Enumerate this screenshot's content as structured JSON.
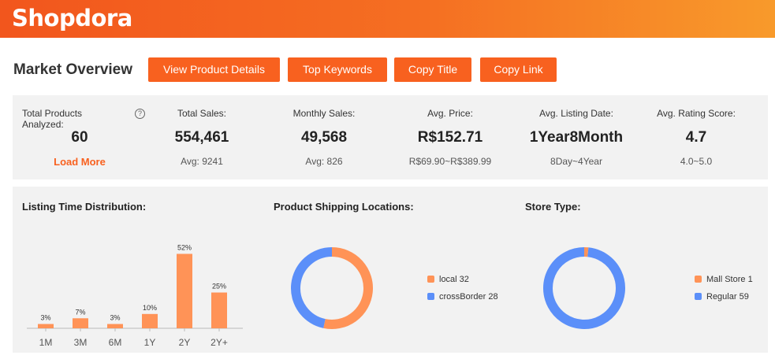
{
  "brand": {
    "logo_text": "Shopdora"
  },
  "header": {
    "title": "Market Overview",
    "buttons": [
      "View Product Details",
      "Top Keywords",
      "Copy Title",
      "Copy Link"
    ]
  },
  "stats": [
    {
      "label": "Total Products Analyzed:",
      "value": "60",
      "sub": "Load More"
    },
    {
      "label": "Total Sales:",
      "value": "554,461",
      "sub": "Avg: 9241"
    },
    {
      "label": "Monthly Sales:",
      "value": "49,568",
      "sub": "Avg: 826"
    },
    {
      "label": "Avg. Price:",
      "value": "R$152.71",
      "sub": "R$69.90~R$389.99"
    },
    {
      "label": "Avg. Listing Date:",
      "value": "1Year8Month",
      "sub": "8Day~4Year"
    },
    {
      "label": "Avg. Rating Score:",
      "value": "4.7",
      "sub": "4.0~5.0"
    }
  ],
  "help_icon_glyph": "?",
  "colors": {
    "accent": "#f8611f",
    "bar": "#ff9357",
    "blue": "#5b8ff9",
    "orange": "#ff9357"
  },
  "chart_data": [
    {
      "type": "bar",
      "title": "Listing Time Distribution:",
      "categories": [
        "1M",
        "3M",
        "6M",
        "1Y",
        "2Y",
        "2Y+"
      ],
      "values": [
        3,
        7,
        3,
        10,
        52,
        25
      ],
      "labels": [
        "3%",
        "7%",
        "3%",
        "10%",
        "52%",
        "25%"
      ],
      "ylim": [
        0,
        55
      ],
      "grid": false
    },
    {
      "type": "pie",
      "title": "Product Shipping Locations:",
      "categories": [
        "local",
        "crossBorder"
      ],
      "values": [
        32,
        28
      ],
      "legend": [
        "local 32",
        "crossBorder 28"
      ],
      "colors": [
        "#ff9357",
        "#5b8ff9"
      ],
      "legend_position": "right"
    },
    {
      "type": "pie",
      "title": "Store Type:",
      "categories": [
        "Mall Store",
        "Regular"
      ],
      "values": [
        1,
        59
      ],
      "legend": [
        "Mall Store 1",
        "Regular 59"
      ],
      "colors": [
        "#ff9357",
        "#5b8ff9"
      ],
      "legend_position": "right"
    }
  ]
}
